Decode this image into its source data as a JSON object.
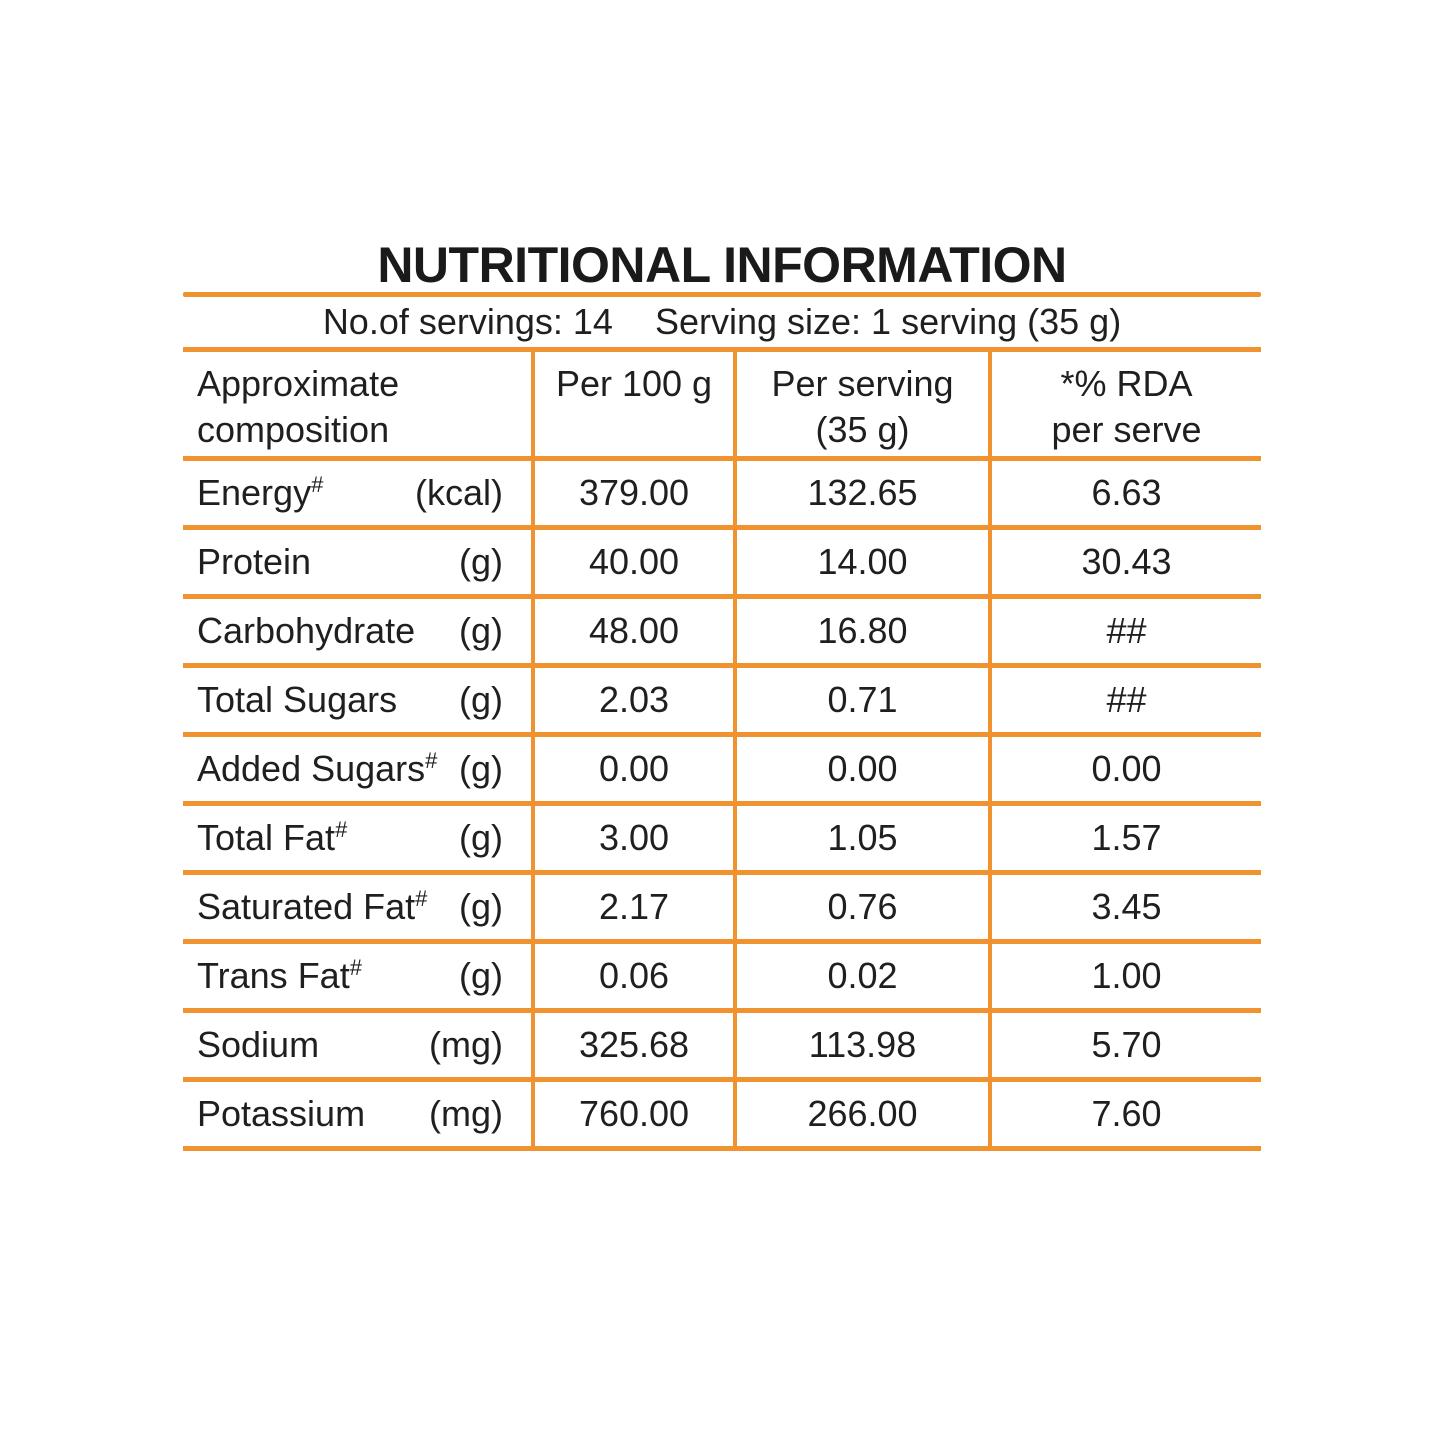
{
  "title": "NUTRITIONAL INFORMATION",
  "servings": {
    "count_label": "No.of servings: 14",
    "size_label": "Serving size: 1 serving (35 g)"
  },
  "colors": {
    "accent": "#F0922F",
    "text": "#1F1F1F"
  },
  "table": {
    "headers": {
      "composition": {
        "line1": "Approximate",
        "line2": "composition"
      },
      "per_100g": {
        "line1": "Per 100 g",
        "line2": ""
      },
      "per_serving": {
        "line1": "Per serving",
        "line2": "(35 g)"
      },
      "rda": {
        "line1": "*% RDA",
        "line2": "per serve"
      }
    },
    "rows": [
      {
        "name": "Energy",
        "sup": "#",
        "unit": "(kcal)",
        "per_100g": "379.00",
        "per_serving": "132.65",
        "rda": "6.63"
      },
      {
        "name": "Protein",
        "sup": "",
        "unit": "(g)",
        "per_100g": "40.00",
        "per_serving": "14.00",
        "rda": "30.43"
      },
      {
        "name": "Carbohydrate",
        "sup": "",
        "unit": "(g)",
        "per_100g": "48.00",
        "per_serving": "16.80",
        "rda": "##"
      },
      {
        "name": "Total Sugars",
        "sup": "",
        "unit": "(g)",
        "per_100g": "2.03",
        "per_serving": "0.71",
        "rda": "##"
      },
      {
        "name": "Added Sugars",
        "sup": "#",
        "unit": "(g)",
        "per_100g": "0.00",
        "per_serving": "0.00",
        "rda": "0.00"
      },
      {
        "name": "Total Fat",
        "sup": "#",
        "unit": "(g)",
        "per_100g": "3.00",
        "per_serving": "1.05",
        "rda": "1.57"
      },
      {
        "name": "Saturated Fat",
        "sup": "#",
        "unit": "(g)",
        "per_100g": "2.17",
        "per_serving": "0.76",
        "rda": "3.45"
      },
      {
        "name": "Trans Fat",
        "sup": "#",
        "unit": "(g)",
        "per_100g": "0.06",
        "per_serving": "0.02",
        "rda": "1.00"
      },
      {
        "name": "Sodium",
        "sup": "",
        "unit": "(mg)",
        "per_100g": "325.68",
        "per_serving": "113.98",
        "rda": "5.70"
      },
      {
        "name": "Potassium",
        "sup": "",
        "unit": "(mg)",
        "per_100g": "760.00",
        "per_serving": "266.00",
        "rda": "7.60"
      }
    ]
  }
}
